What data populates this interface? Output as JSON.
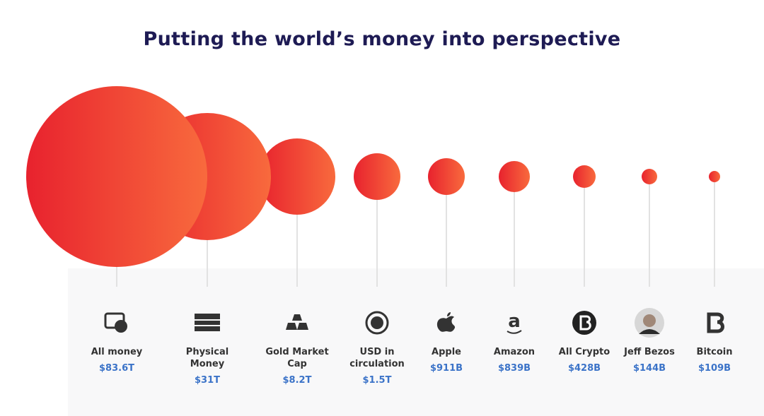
{
  "title": "Putting the world’s money into perspective",
  "items": [
    {
      "label": "All money",
      "amount": "$83.6T"
    },
    {
      "label": "Physical Money",
      "amount": "$31T"
    },
    {
      "label": "Gold Market Cap",
      "amount": "$8.2T"
    },
    {
      "label": "USD in circulation",
      "amount": "$1.5T"
    },
    {
      "label": "Apple",
      "amount": "$911B"
    },
    {
      "label": "Amazon",
      "amount": "$839B"
    },
    {
      "label": "All Crypto",
      "amount": "$428B"
    },
    {
      "label": "Jeff Bezos",
      "amount": "$144B"
    },
    {
      "label": "Bitcoin",
      "amount": "$109B"
    }
  ]
}
